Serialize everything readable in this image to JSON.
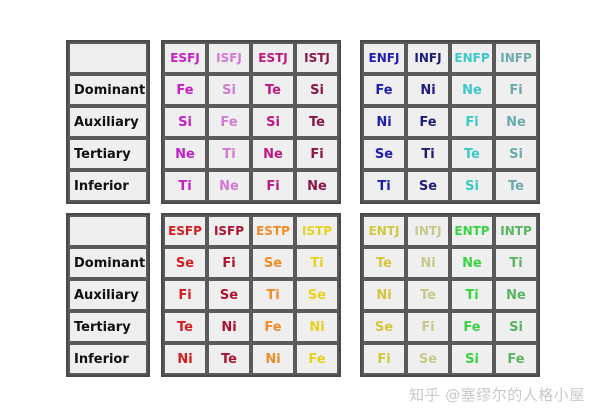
{
  "row_labels": [
    "Dominant",
    "Auxiliary",
    "Tertiary",
    "Inferior"
  ],
  "groups": [
    {
      "id": "SJ",
      "types": [
        {
          "name": "ESFJ",
          "color": "#c81ec8",
          "functions": [
            "Fe",
            "Si",
            "Ne",
            "Ti"
          ]
        },
        {
          "name": "ISFJ",
          "color": "#d27ad2",
          "functions": [
            "Si",
            "Fe",
            "Ti",
            "Ne"
          ]
        },
        {
          "name": "ESTJ",
          "color": "#c01880",
          "functions": [
            "Te",
            "Si",
            "Ne",
            "Fi"
          ]
        },
        {
          "name": "ISTJ",
          "color": "#8c1448",
          "functions": [
            "Si",
            "Te",
            "Fi",
            "Ne"
          ]
        }
      ]
    },
    {
      "id": "NF",
      "types": [
        {
          "name": "ENFJ",
          "color": "#1e1eb4",
          "functions": [
            "Fe",
            "Ni",
            "Se",
            "Ti"
          ]
        },
        {
          "name": "INFJ",
          "color": "#1e1e78",
          "functions": [
            "Ni",
            "Fe",
            "Ti",
            "Se"
          ]
        },
        {
          "name": "ENFP",
          "color": "#3cc8c8",
          "functions": [
            "Ne",
            "Fi",
            "Te",
            "Si"
          ]
        },
        {
          "name": "INFP",
          "color": "#6eaaaa",
          "functions": [
            "Fi",
            "Ne",
            "Si",
            "Te"
          ]
        }
      ]
    },
    {
      "id": "SP",
      "types": [
        {
          "name": "ESFP",
          "color": "#d21e1e",
          "functions": [
            "Se",
            "Fi",
            "Te",
            "Ni"
          ]
        },
        {
          "name": "ISFP",
          "color": "#aa1432",
          "functions": [
            "Fi",
            "Se",
            "Ni",
            "Te"
          ]
        },
        {
          "name": "ESTP",
          "color": "#f08c28",
          "functions": [
            "Se",
            "Ti",
            "Fe",
            "Ni"
          ]
        },
        {
          "name": "ISTP",
          "color": "#e6d21e",
          "functions": [
            "Ti",
            "Se",
            "Ni",
            "Fe"
          ]
        }
      ]
    },
    {
      "id": "NT",
      "types": [
        {
          "name": "ENTJ",
          "color": "#d2c83c",
          "functions": [
            "Te",
            "Ni",
            "Se",
            "Fi"
          ]
        },
        {
          "name": "INTJ",
          "color": "#c8c88c",
          "functions": [
            "Ni",
            "Te",
            "Fi",
            "Se"
          ]
        },
        {
          "name": "ENTP",
          "color": "#3cd246",
          "functions": [
            "Ne",
            "Ti",
            "Fe",
            "Si"
          ]
        },
        {
          "name": "INTP",
          "color": "#5ab464",
          "functions": [
            "Ti",
            "Ne",
            "Si",
            "Fe"
          ]
        }
      ]
    }
  ],
  "watermark": "知乎 @塞缪尔的人格小屋"
}
